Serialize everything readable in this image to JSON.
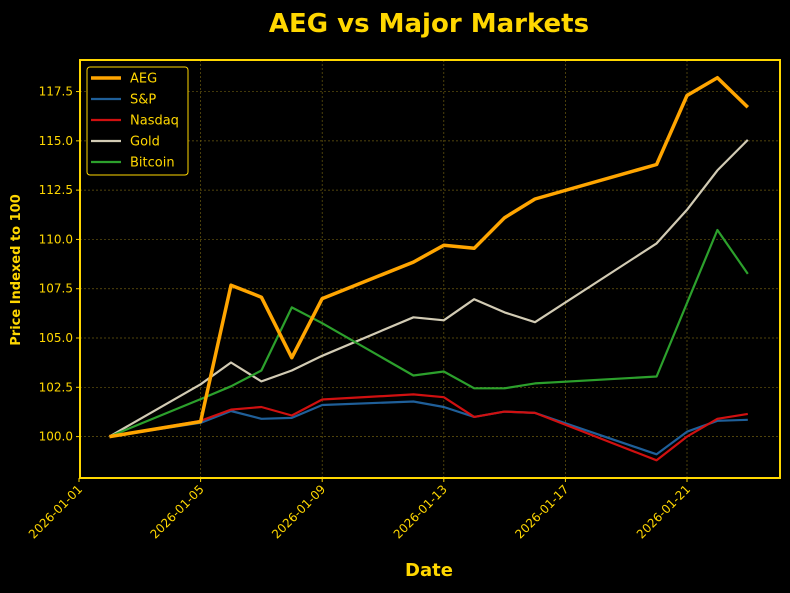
{
  "chart_data": {
    "type": "line",
    "title": "AEG vs Major Markets",
    "xlabel": "Date",
    "ylabel": "Price Indexed to 100",
    "x": [
      "2026-01-02",
      "2026-01-05",
      "2026-01-06",
      "2026-01-07",
      "2026-01-08",
      "2026-01-09",
      "2026-01-12",
      "2026-01-13",
      "2026-01-14",
      "2026-01-15",
      "2026-01-16",
      "2026-01-20",
      "2026-01-21",
      "2026-01-22",
      "2026-01-23"
    ],
    "x_ticks": [
      "2026-01-01",
      "2026-01-05",
      "2026-01-09",
      "2026-01-13",
      "2026-01-17",
      "2026-01-21"
    ],
    "y_ticks": [
      100.0,
      102.5,
      105.0,
      107.5,
      110.0,
      112.5,
      115.0,
      117.5
    ],
    "ylim": [
      97.9,
      119.1
    ],
    "grid": true,
    "legend_position": "top-left",
    "colors": {
      "background": "#000000",
      "accent": "#FFD700"
    },
    "series": [
      {
        "name": "AEG",
        "color": "#FFA500",
        "values": [
          100.0,
          100.76,
          107.68,
          107.07,
          104.0,
          107.0,
          108.85,
          109.7,
          109.55,
          111.1,
          112.05,
          113.8,
          117.3,
          118.2,
          116.7
        ]
      },
      {
        "name": "S&P",
        "color": "#1f5f99",
        "values": [
          100.0,
          100.7,
          101.3,
          100.9,
          100.95,
          101.6,
          101.78,
          101.5,
          101.0,
          101.27,
          101.2,
          99.1,
          100.25,
          100.8,
          100.85
        ]
      },
      {
        "name": "Nasdaq",
        "color": "#d01010",
        "values": [
          100.0,
          100.8,
          101.37,
          101.5,
          101.07,
          101.88,
          102.14,
          102.0,
          101.0,
          101.27,
          101.2,
          98.8,
          100.0,
          100.9,
          101.15
        ]
      },
      {
        "name": "Gold",
        "color": "#d2cbb4",
        "values": [
          100.0,
          102.65,
          103.76,
          102.8,
          103.35,
          104.1,
          106.05,
          105.9,
          106.97,
          106.3,
          105.8,
          109.8,
          111.5,
          113.5,
          115.05
        ]
      },
      {
        "name": "Bitcoin",
        "color": "#2ca02c",
        "values": [
          100.0,
          101.9,
          102.55,
          103.35,
          106.55,
          105.75,
          103.1,
          103.3,
          102.45,
          102.45,
          102.7,
          103.05,
          106.77,
          110.48,
          108.25
        ]
      }
    ]
  }
}
